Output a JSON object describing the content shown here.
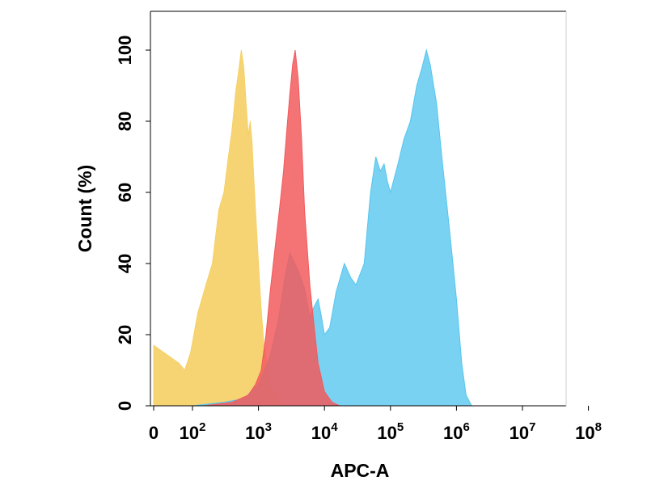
{
  "chart_data": {
    "type": "area",
    "title": "",
    "xlabel": "APC-A",
    "ylabel": "Count  (%)",
    "x_scale": "log",
    "ylim": [
      0,
      100
    ],
    "x_ticks": [
      {
        "label": "0",
        "base": "",
        "exp": "",
        "value": 0
      },
      {
        "label": "10",
        "base": "10",
        "exp": "2",
        "value": 100
      },
      {
        "label": "10",
        "base": "10",
        "exp": "3",
        "value": 1000
      },
      {
        "label": "10",
        "base": "10",
        "exp": "4",
        "value": 10000
      },
      {
        "label": "10",
        "base": "10",
        "exp": "5",
        "value": 100000
      },
      {
        "label": "10",
        "base": "10",
        "exp": "6",
        "value": 1000000
      },
      {
        "label": "10",
        "base": "10",
        "exp": "7",
        "value": 10000000
      },
      {
        "label": "10",
        "base": "10",
        "exp": "8",
        "value": 100000000
      }
    ],
    "y_ticks": [
      0,
      20,
      40,
      60,
      80,
      100
    ],
    "series": [
      {
        "color": "#f6d067",
        "opacity": 0.92,
        "x": [
          1,
          20,
          40,
          80,
          120,
          160,
          200,
          250,
          300,
          350,
          400,
          450,
          500,
          550,
          600,
          650,
          700,
          750,
          800,
          850,
          900,
          1000,
          1100,
          1200,
          1400,
          1700,
          2000,
          2500
        ],
        "y": [
          17,
          12,
          10,
          15,
          26,
          34,
          40,
          55,
          60,
          70,
          78,
          88,
          94,
          100,
          95,
          85,
          76,
          80,
          74,
          64,
          55,
          40,
          27,
          18,
          9,
          4,
          1,
          0
        ]
      },
      {
        "color": "#55c5ee",
        "opacity": 0.78,
        "x": [
          100,
          300,
          600,
          1000,
          1500,
          2000,
          2500,
          3000,
          4000,
          5000,
          6000,
          7000,
          8000,
          9000,
          10000,
          12000,
          15000,
          20000,
          25000,
          30000,
          40000,
          50000,
          60000,
          70000,
          80000,
          90000,
          100000,
          130000,
          160000,
          200000,
          250000,
          300000,
          350000,
          400000,
          500000,
          600000,
          800000,
          1000000,
          1200000,
          1400000,
          1700000
        ],
        "y": [
          0,
          1,
          2,
          6,
          14,
          24,
          36,
          43,
          38,
          33,
          25,
          28,
          30,
          25,
          20,
          22,
          32,
          40,
          36,
          34,
          40,
          60,
          70,
          66,
          68,
          63,
          60,
          68,
          75,
          80,
          90,
          95,
          100,
          96,
          85,
          70,
          48,
          30,
          12,
          3,
          0
        ]
      },
      {
        "color": "#f25a5d",
        "opacity": 0.85,
        "x": [
          150,
          400,
          700,
          900,
          1100,
          1300,
          1500,
          1800,
          2100,
          2400,
          2700,
          3000,
          3300,
          3600,
          4000,
          4500,
          5000,
          6000,
          7000,
          8000,
          10000,
          13000,
          17000
        ],
        "y": [
          0,
          1,
          3,
          6,
          10,
          20,
          32,
          45,
          56,
          66,
          78,
          88,
          96,
          100,
          92,
          75,
          55,
          34,
          22,
          12,
          4,
          1,
          0
        ]
      }
    ]
  }
}
